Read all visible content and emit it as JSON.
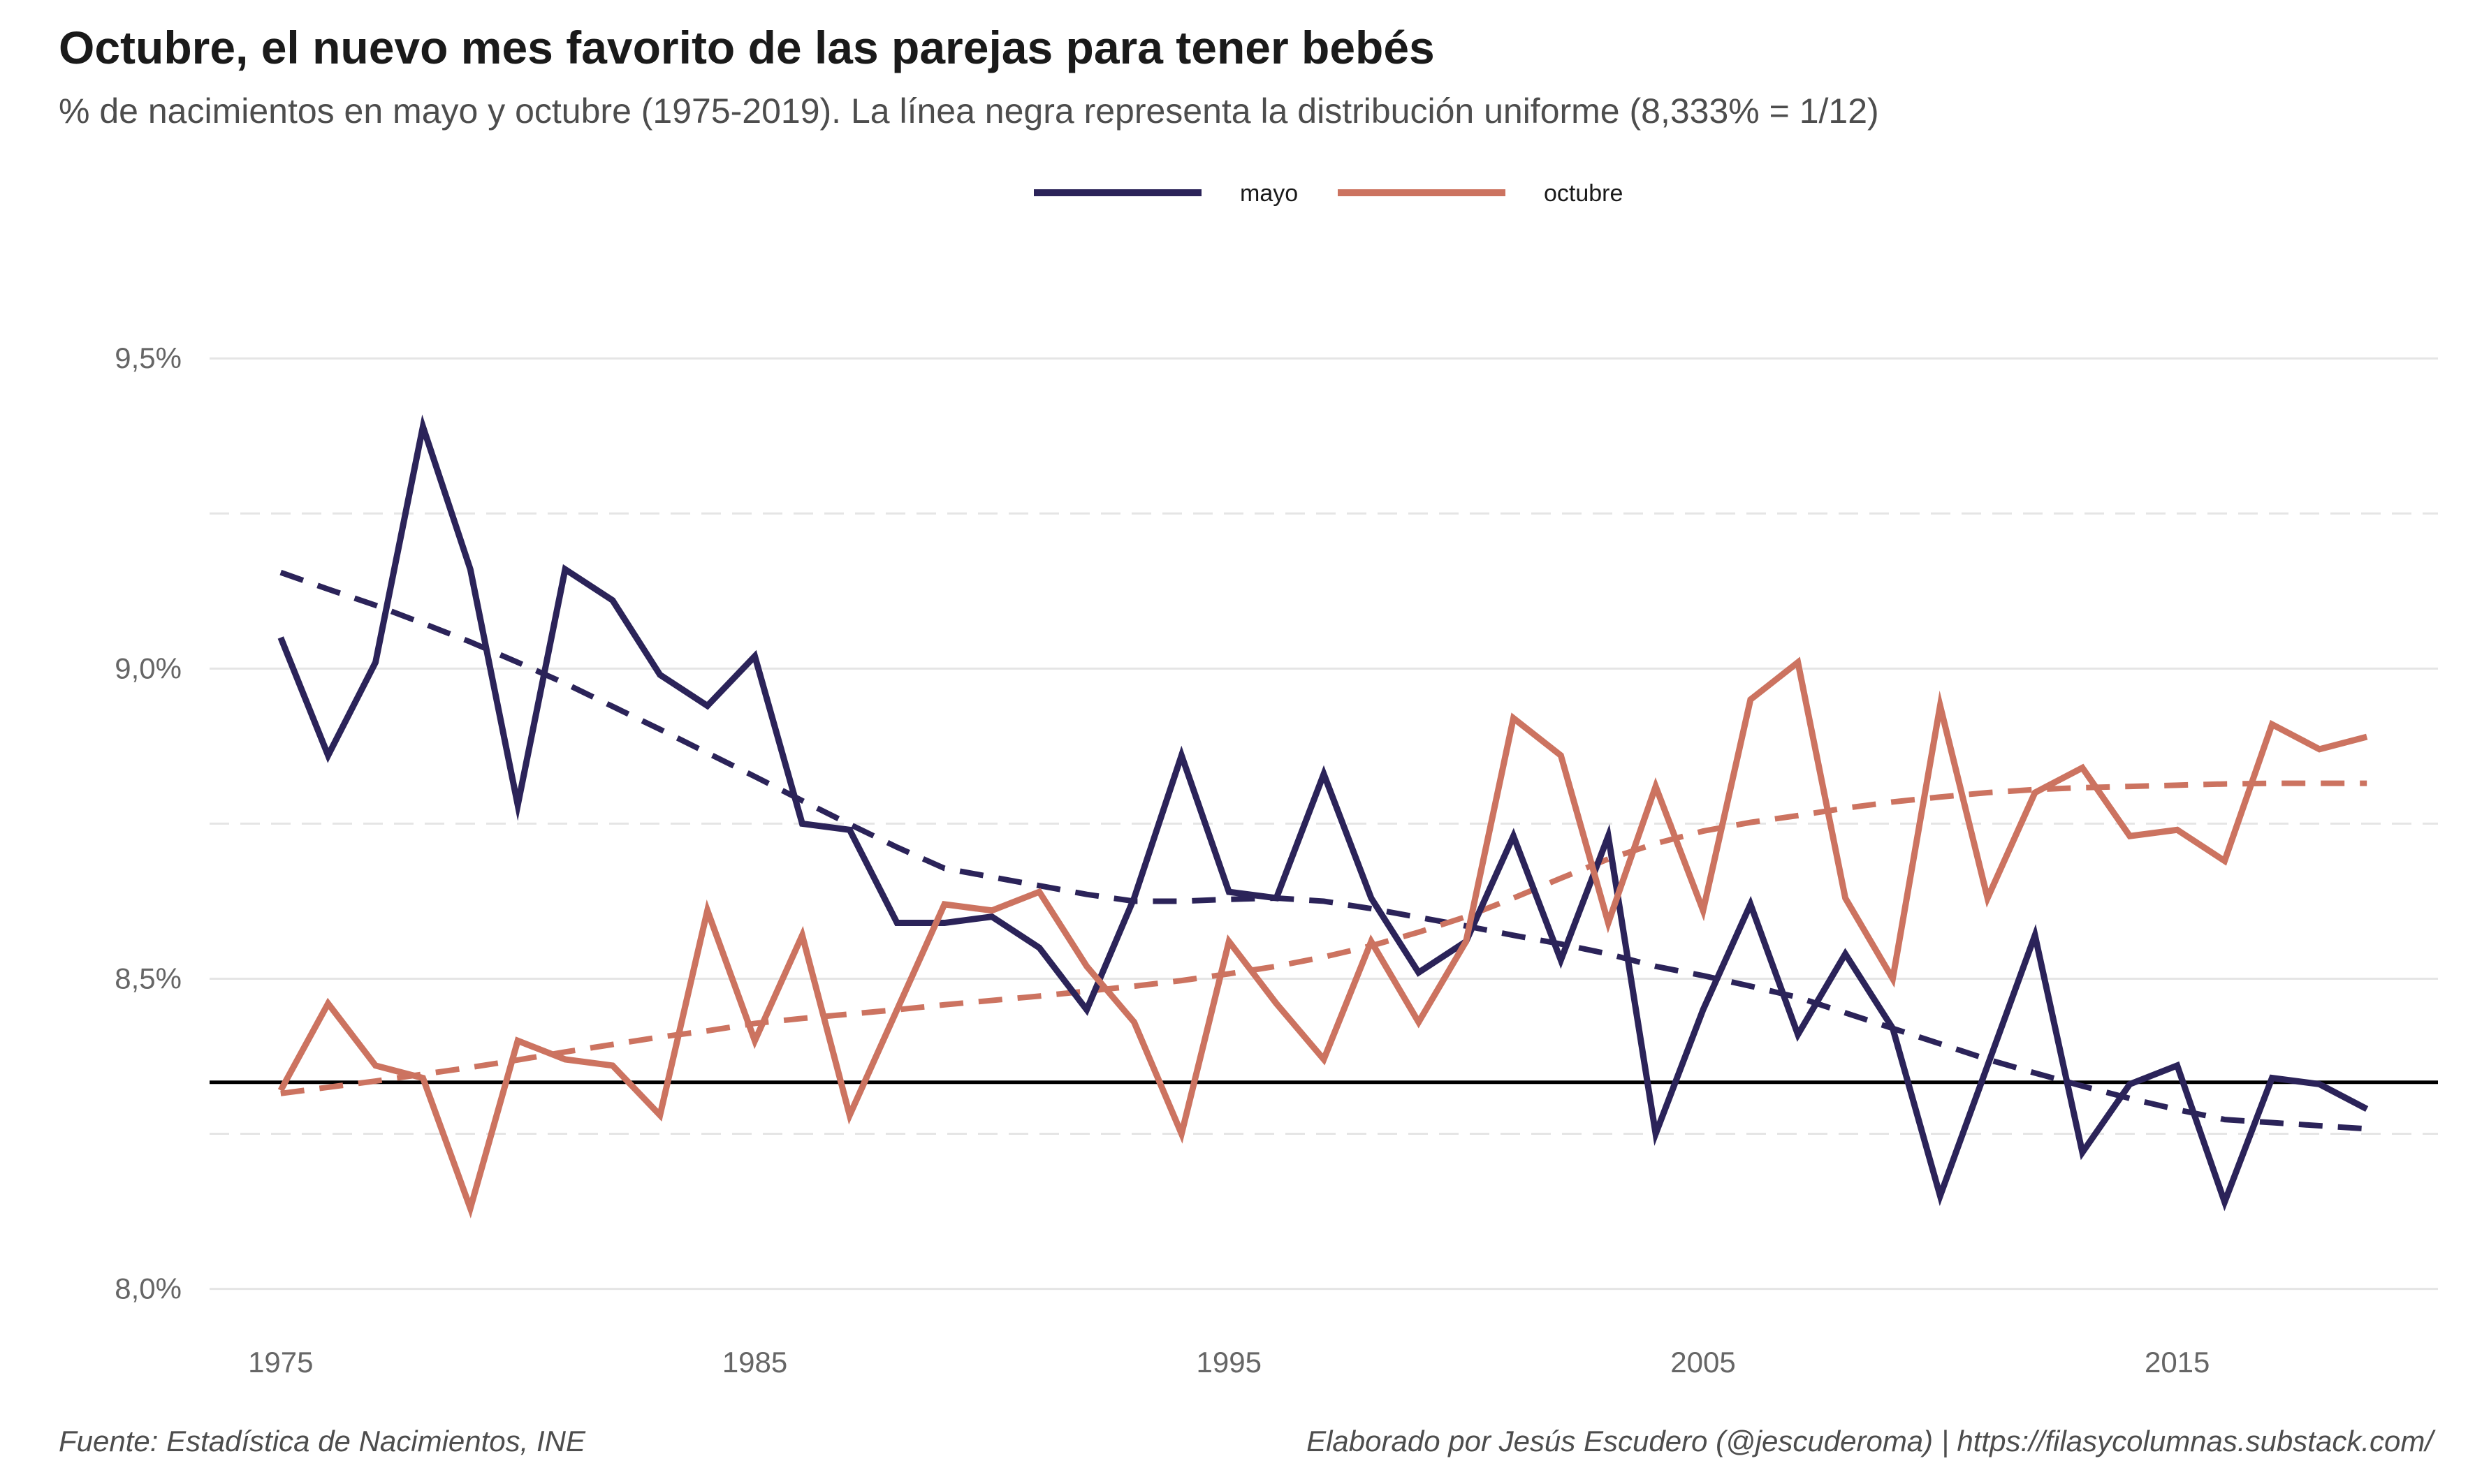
{
  "title": "Octubre, el nuevo mes favorito de las parejas para tener bebés",
  "subtitle": "% de nacimientos en mayo y octubre (1975-2019). La línea negra representa la distribución uniforme (8,333% = 1/12)",
  "caption_left": "Fuente: Estadística de Nacimientos, INE",
  "caption_right": "Elaborado por Jesús Escudero (@jescuderoma) | https://filasycolumnas.substack.com/",
  "chart_data": {
    "type": "line",
    "title": "Octubre, el nuevo mes favorito de las parejas para tener bebés",
    "xlabel": "",
    "ylabel": "",
    "x": [
      1975,
      1976,
      1977,
      1978,
      1979,
      1980,
      1981,
      1982,
      1983,
      1984,
      1985,
      1986,
      1987,
      1988,
      1989,
      1990,
      1991,
      1992,
      1993,
      1994,
      1995,
      1996,
      1997,
      1998,
      1999,
      2000,
      2001,
      2002,
      2003,
      2004,
      2005,
      2006,
      2007,
      2008,
      2009,
      2010,
      2011,
      2012,
      2013,
      2014,
      2015,
      2016,
      2017,
      2018,
      2019
    ],
    "xlim": [
      1973.5,
      2020.5
    ],
    "ylim": [
      7.95,
      9.65
    ],
    "x_ticks": [
      1975,
      1985,
      1995,
      2005,
      2015
    ],
    "x_tick_labels": [
      "1975",
      "1985",
      "1995",
      "2005",
      "2015"
    ],
    "y_ticks": [
      8.0,
      8.5,
      9.0,
      9.5
    ],
    "y_tick_labels": [
      "8,0%",
      "8,5%",
      "9,0%",
      "9,5%"
    ],
    "y_minor_ticks": [
      8.25,
      8.75,
      9.25
    ],
    "grid": true,
    "legend_position": "top",
    "reference_line": {
      "value": 8.333,
      "color": "#000000"
    },
    "series": [
      {
        "name": "mayo",
        "color": "#2b2359",
        "values": [
          9.05,
          8.86,
          9.01,
          9.39,
          9.16,
          8.78,
          9.16,
          9.11,
          8.99,
          8.94,
          9.02,
          8.75,
          8.74,
          8.59,
          8.59,
          8.6,
          8.55,
          8.45,
          8.63,
          8.86,
          8.64,
          8.63,
          8.83,
          8.63,
          8.51,
          8.56,
          8.73,
          8.53,
          8.73,
          8.25,
          8.45,
          8.62,
          8.41,
          8.54,
          8.42,
          8.15,
          8.36,
          8.57,
          8.22,
          8.33,
          8.36,
          8.14,
          8.34,
          8.33,
          8.29
        ],
        "trend": [
          9.155,
          9.128,
          9.102,
          9.073,
          9.043,
          9.01,
          8.976,
          8.939,
          8.902,
          8.864,
          8.826,
          8.787,
          8.749,
          8.712,
          8.678,
          8.664,
          8.65,
          8.636,
          8.625,
          8.625,
          8.628,
          8.63,
          8.625,
          8.613,
          8.599,
          8.585,
          8.57,
          8.556,
          8.54,
          8.52,
          8.505,
          8.488,
          8.47,
          8.445,
          8.42,
          8.395,
          8.37,
          8.348,
          8.327,
          8.307,
          8.289,
          8.273,
          8.268,
          8.263,
          8.258
        ]
      },
      {
        "name": "octubre",
        "color": "#cc7360",
        "values": [
          8.32,
          8.46,
          8.36,
          8.34,
          8.13,
          8.4,
          8.37,
          8.36,
          8.28,
          8.61,
          8.4,
          8.57,
          8.28,
          8.45,
          8.62,
          8.61,
          8.64,
          8.52,
          8.43,
          8.25,
          8.56,
          8.46,
          8.37,
          8.56,
          8.43,
          8.56,
          8.92,
          8.86,
          8.59,
          8.81,
          8.61,
          8.95,
          9.01,
          8.63,
          8.5,
          8.94,
          8.63,
          8.8,
          8.84,
          8.73,
          8.74,
          8.69,
          8.91,
          8.87,
          8.89
        ],
        "trend": [
          8.315,
          8.325,
          8.335,
          8.346,
          8.357,
          8.369,
          8.382,
          8.394,
          8.406,
          8.416,
          8.428,
          8.436,
          8.443,
          8.45,
          8.458,
          8.465,
          8.472,
          8.48,
          8.488,
          8.497,
          8.508,
          8.52,
          8.535,
          8.553,
          8.575,
          8.6,
          8.63,
          8.662,
          8.693,
          8.718,
          8.738,
          8.752,
          8.763,
          8.775,
          8.785,
          8.793,
          8.8,
          8.805,
          8.808,
          8.81,
          8.812,
          8.814,
          8.815,
          8.815,
          8.815
        ]
      }
    ]
  }
}
